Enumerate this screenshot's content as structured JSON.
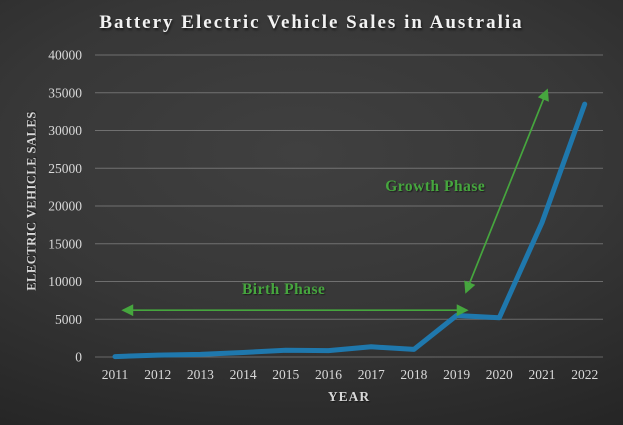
{
  "chart_data": {
    "type": "line",
    "title": "Battery Electric Vehicle Sales in Australia",
    "xlabel": "YEAR",
    "ylabel": "ELECTRIC VEHICLE SALES",
    "x": [
      2011,
      2012,
      2013,
      2014,
      2015,
      2016,
      2017,
      2018,
      2019,
      2020,
      2021,
      2022
    ],
    "series": [
      {
        "name": "Battery electric vehicle sales",
        "color": "#1f78ad",
        "values": [
          50,
          250,
          350,
          600,
          900,
          850,
          1350,
          1000,
          5500,
          5200,
          17800,
          33500
        ]
      }
    ],
    "ylim": [
      0,
      40000
    ],
    "ytick_step": 5000,
    "yticks": [
      0,
      5000,
      10000,
      15000,
      20000,
      25000,
      30000,
      35000,
      40000
    ],
    "grid": true,
    "legend": false,
    "annotations": [
      {
        "label": "Birth Phase",
        "color": "#46a63e",
        "label_at": {
          "x": 2014.95,
          "y": 8900
        },
        "arrow": {
          "x1": 2011.19,
          "y1": 6200,
          "x2": 2019.24,
          "y2": 6200,
          "double_headed": true
        }
      },
      {
        "label": "Growth Phase",
        "color": "#46a63e",
        "label_at": {
          "x": 2018.5,
          "y": 22500
        },
        "arrow": {
          "x1": 2019.22,
          "y1": 8600,
          "x2": 2021.12,
          "y2": 35350,
          "double_headed": true
        }
      }
    ]
  },
  "colors": {
    "background_center": "#3e3e3e",
    "background_edge": "#1c1c1c",
    "gridline": "rgba(255,255,255,0.28)",
    "tick_label": "#d9d9d9",
    "title_text": "#f2f2f2",
    "line": "#1f78ad",
    "annotation_green": "#46a63e"
  }
}
